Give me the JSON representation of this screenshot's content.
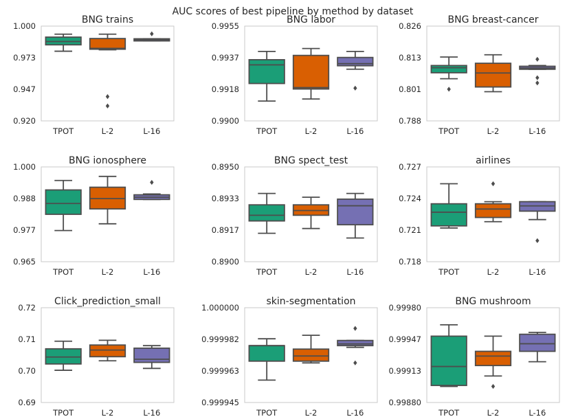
{
  "figure": {
    "title": "AUC scores of best pipeline by method by dataset"
  },
  "colors": {
    "TPOT": "#1b9e77",
    "L-2": "#d95f02",
    "L-16": "#7570b3",
    "line": "#4d4d4d",
    "axis": "#c8c8c8"
  },
  "chart_data": [
    {
      "type": "box",
      "title": "BNG trains",
      "categories": [
        "TPOT",
        "L-2",
        "L-16"
      ],
      "yticks": [
        "1.000",
        "0.973",
        "0.947",
        "0.920"
      ],
      "ylim": [
        0.92,
        1.0
      ],
      "boxes": [
        {
          "whislo": 0.9788,
          "q1": 0.9842,
          "med": 0.987,
          "q3": 0.9907,
          "whishi": 0.9932,
          "fliers": []
        },
        {
          "whislo": 0.98,
          "q1": 0.9805,
          "med": 0.9812,
          "q3": 0.9895,
          "whishi": 0.9932,
          "fliers": [
            0.9405,
            0.9326
          ]
        },
        {
          "whislo": 0.9875,
          "q1": 0.9875,
          "med": 0.9885,
          "q3": 0.9893,
          "whishi": 0.9893,
          "fliers": [
            0.9935
          ]
        }
      ]
    },
    {
      "type": "box",
      "title": "BNG labor",
      "categories": [
        "TPOT",
        "L-2",
        "L-16"
      ],
      "yticks": [
        "0.9955",
        "0.9937",
        "0.9918",
        "0.9900"
      ],
      "ylim": [
        0.99,
        0.9955
      ],
      "boxes": [
        {
          "whislo": 0.99115,
          "q1": 0.99217,
          "med": 0.99325,
          "q3": 0.99355,
          "whishi": 0.99403,
          "fliers": []
        },
        {
          "whislo": 0.99127,
          "q1": 0.99185,
          "med": 0.99193,
          "q3": 0.9938,
          "whishi": 0.9942,
          "fliers": []
        },
        {
          "whislo": 0.993,
          "q1": 0.9932,
          "med": 0.99332,
          "q3": 0.99368,
          "whishi": 0.99403,
          "fliers": [
            0.9919
          ]
        }
      ]
    },
    {
      "type": "box",
      "title": "BNG breast-cancer",
      "categories": [
        "TPOT",
        "L-2",
        "L-16"
      ],
      "yticks": [
        "0.826",
        "0.813",
        "0.801",
        "0.788"
      ],
      "ylim": [
        0.788,
        0.826
      ],
      "boxes": [
        {
          "whislo": 0.8049,
          "q1": 0.8073,
          "med": 0.8093,
          "q3": 0.8102,
          "whishi": 0.8136,
          "fliers": [
            0.8007
          ]
        },
        {
          "whislo": 0.7997,
          "q1": 0.8016,
          "med": 0.8072,
          "q3": 0.8111,
          "whishi": 0.8145,
          "fliers": []
        },
        {
          "whislo": 0.8087,
          "q1": 0.8087,
          "med": 0.8092,
          "q3": 0.8099,
          "whishi": 0.8102,
          "fliers": [
            0.8127,
            0.8053,
            0.8032
          ]
        }
      ]
    },
    {
      "type": "box",
      "title": "BNG ionosphere",
      "categories": [
        "TPOT",
        "L-2",
        "L-16"
      ],
      "yticks": [
        "1.000",
        "0.988",
        "0.977",
        "0.965"
      ],
      "ylim": [
        0.965,
        1.0
      ],
      "boxes": [
        {
          "whislo": 0.9765,
          "q1": 0.9825,
          "med": 0.9865,
          "q3": 0.9915,
          "whishi": 0.995,
          "fliers": []
        },
        {
          "whislo": 0.979,
          "q1": 0.9845,
          "med": 0.9883,
          "q3": 0.9925,
          "whishi": 0.9965,
          "fliers": []
        },
        {
          "whislo": 0.988,
          "q1": 0.988,
          "med": 0.9888,
          "q3": 0.9897,
          "whishi": 0.99,
          "fliers": [
            0.9943
          ]
        }
      ]
    },
    {
      "type": "box",
      "title": "BNG spect_test",
      "categories": [
        "TPOT",
        "L-2",
        "L-16"
      ],
      "yticks": [
        "0.8950",
        "0.8933",
        "0.8917",
        "0.8900"
      ],
      "ylim": [
        0.89,
        0.895
      ],
      "boxes": [
        {
          "whislo": 0.8915,
          "q1": 0.89215,
          "med": 0.89245,
          "q3": 0.893,
          "whishi": 0.8936,
          "fliers": []
        },
        {
          "whislo": 0.89175,
          "q1": 0.89245,
          "med": 0.8927,
          "q3": 0.893,
          "whishi": 0.8934,
          "fliers": []
        },
        {
          "whislo": 0.89125,
          "q1": 0.89195,
          "med": 0.89295,
          "q3": 0.8933,
          "whishi": 0.8936,
          "fliers": []
        }
      ]
    },
    {
      "type": "box",
      "title": "airlines",
      "categories": [
        "TPOT",
        "L-2",
        "L-16"
      ],
      "yticks": [
        "0.727",
        "0.724",
        "0.721",
        "0.718"
      ],
      "ylim": [
        0.718,
        0.727
      ],
      "boxes": [
        {
          "whislo": 0.7212,
          "q1": 0.7214,
          "med": 0.7227,
          "q3": 0.7235,
          "whishi": 0.7254,
          "fliers": []
        },
        {
          "whislo": 0.7218,
          "q1": 0.7222,
          "med": 0.723,
          "q3": 0.7235,
          "whishi": 0.7237,
          "fliers": [
            0.7254
          ]
        },
        {
          "whislo": 0.722,
          "q1": 0.7228,
          "med": 0.7233,
          "q3": 0.7237,
          "whishi": 0.7237,
          "fliers": [
            0.72
          ]
        }
      ]
    },
    {
      "type": "box",
      "title": "Click_prediction_small",
      "categories": [
        "TPOT",
        "L-2",
        "L-16"
      ],
      "yticks": [
        "0.72",
        "0.71",
        "0.70",
        "0.69"
      ],
      "ylim": [
        0.69,
        0.72
      ],
      "boxes": [
        {
          "whislo": 0.7002,
          "q1": 0.7022,
          "med": 0.7044,
          "q3": 0.707,
          "whishi": 0.7094,
          "fliers": []
        },
        {
          "whislo": 0.7032,
          "q1": 0.7045,
          "med": 0.7066,
          "q3": 0.7082,
          "whishi": 0.7097,
          "fliers": []
        },
        {
          "whislo": 0.7008,
          "q1": 0.7027,
          "med": 0.7037,
          "q3": 0.7072,
          "whishi": 0.708,
          "fliers": []
        }
      ]
    },
    {
      "type": "box",
      "title": "skin-segmentation",
      "categories": [
        "TPOT",
        "L-2",
        "L-16"
      ],
      "yticks": [
        "1.000000",
        "0.999982",
        "0.999963",
        "0.999945"
      ],
      "ylim": [
        0.999945,
        1.0
      ],
      "boxes": [
        {
          "whislo": 0.999958,
          "q1": 0.999969,
          "med": 0.999978,
          "q3": 0.999978,
          "whishi": 0.999982,
          "fliers": []
        },
        {
          "whislo": 0.999968,
          "q1": 0.999969,
          "med": 0.999972,
          "q3": 0.999976,
          "whishi": 0.999984,
          "fliers": []
        },
        {
          "whislo": 0.999977,
          "q1": 0.999978,
          "med": 0.999979,
          "q3": 0.999981,
          "whishi": 0.999981,
          "fliers": [
            0.999988,
            0.999968
          ]
        }
      ]
    },
    {
      "type": "box",
      "title": "BNG mushroom",
      "categories": [
        "TPOT",
        "L-2",
        "L-16"
      ],
      "yticks": [
        "0.99980",
        "0.99947",
        "0.99913",
        "0.99880"
      ],
      "ylim": [
        0.9988,
        0.9998
      ],
      "boxes": [
        {
          "whislo": 0.99897,
          "q1": 0.99898,
          "med": 0.99918,
          "q3": 0.9995,
          "whishi": 0.99962,
          "fliers": []
        },
        {
          "whislo": 0.99908,
          "q1": 0.99919,
          "med": 0.99929,
          "q3": 0.99934,
          "whishi": 0.9995,
          "fliers": [
            0.99897
          ]
        },
        {
          "whislo": 0.99923,
          "q1": 0.99934,
          "med": 0.99942,
          "q3": 0.99952,
          "whishi": 0.99954,
          "fliers": []
        }
      ]
    }
  ]
}
